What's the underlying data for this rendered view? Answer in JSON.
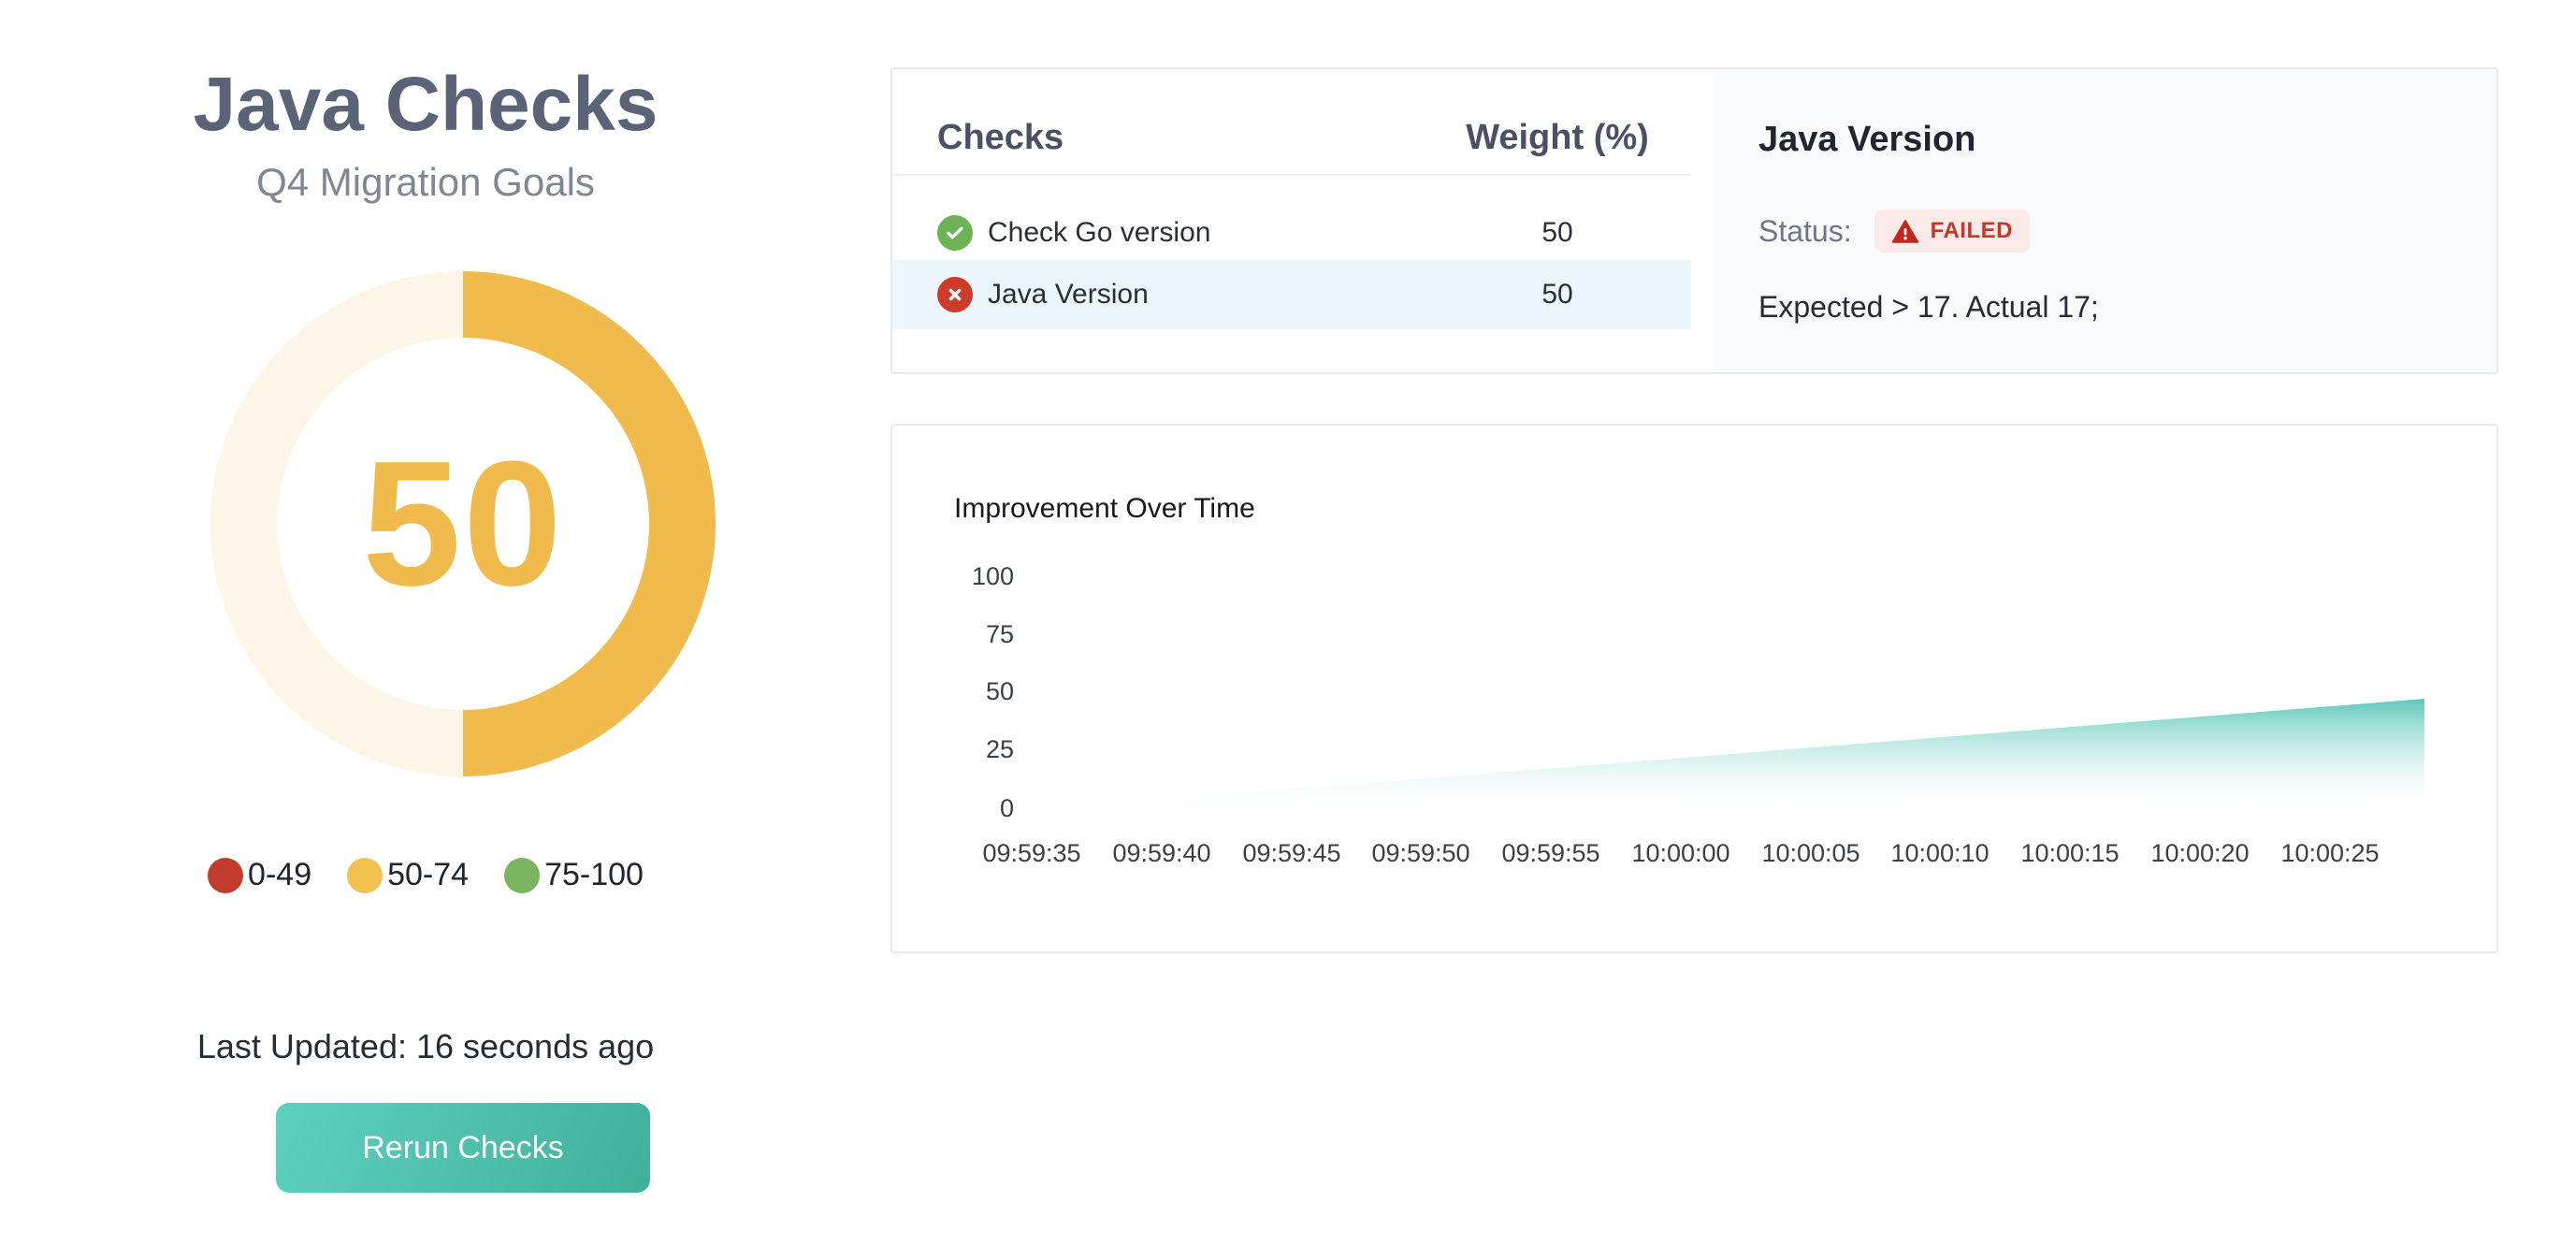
{
  "header": {
    "title": "Java Checks",
    "subtitle": "Q4 Migration Goals"
  },
  "gauge": {
    "value": "50",
    "percent": 50,
    "legend": [
      {
        "label": "0-49",
        "color": "#C23B2C"
      },
      {
        "label": "50-74",
        "color": "#F2C24E"
      },
      {
        "label": "75-100",
        "color": "#7CB561"
      }
    ]
  },
  "footer": {
    "last_updated": "Last Updated: 16 seconds ago",
    "rerun_button": "Rerun Checks"
  },
  "checks_panel": {
    "col_checks": "Checks",
    "col_weight": "Weight (%)",
    "rows": [
      {
        "name": "Check Go version",
        "weight": "50",
        "status": "passed"
      },
      {
        "name": "Java Version",
        "weight": "50",
        "status": "failed",
        "selected": true
      }
    ]
  },
  "detail_panel": {
    "title": "Java Version",
    "status_label": "Status:",
    "badge": "FAILED",
    "message": "Expected > 17. Actual 17;"
  },
  "chart_data": {
    "type": "area",
    "title": "Improvement Over Time",
    "xlabel": "",
    "ylabel": "",
    "ylim": [
      0,
      100
    ],
    "grid": false,
    "legend_position": "none",
    "y_ticks": [
      "100",
      "75",
      "50",
      "25",
      "0"
    ],
    "x_ticks": [
      "09:59:35",
      "09:59:40",
      "09:59:45",
      "09:59:50",
      "09:59:55",
      "10:00:00",
      "10:00:05",
      "10:00:10",
      "10:00:15",
      "10:00:20",
      "10:00:25"
    ],
    "series": [
      {
        "name": "Improvement",
        "start_time": "09:59:34",
        "start_value": 0,
        "end_time": "10:00:28",
        "end_value": 47,
        "values_at_ticks": [
          0,
          5,
          9,
          14,
          19,
          23,
          28,
          33,
          37,
          42,
          47
        ],
        "shape": "linear-rise",
        "fill": "vertical gradient teal to white"
      }
    ]
  },
  "theme": {
    "accent_gold": "#F0BB4C",
    "gauge_track": "#FCF5E8",
    "gauge_percent": "50%",
    "title_color": "#5B6377",
    "subtitle_color": "#7F8795",
    "teal_start": "#5ED0C0",
    "teal_end": "#3FB09A",
    "legend_red": "#C23B2C",
    "legend_gold": "#F2C24E",
    "legend_green": "#7CB561",
    "pass_green": "#6CB453",
    "fail_red": "#CE3B29",
    "row_highlight": "#EAF6FA",
    "panel_bg": "#F8FAFB",
    "badge_bg": "#FBEAE8",
    "badge_text": "#C4372A",
    "chart_fill": "#4FC3B3"
  }
}
